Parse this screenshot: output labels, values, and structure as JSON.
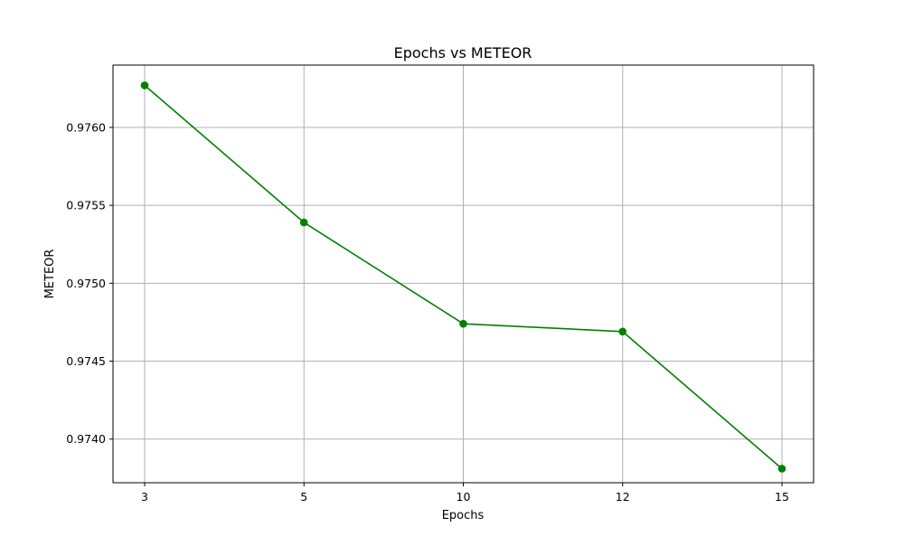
{
  "chart_data": {
    "type": "line",
    "title": "Epochs vs METEOR",
    "xlabel": "Epochs",
    "ylabel": "METEOR",
    "categories": [
      "3",
      "5",
      "10",
      "12",
      "15"
    ],
    "series": [
      {
        "values": [
          0.97627,
          0.97539,
          0.97474,
          0.97469,
          0.97381
        ],
        "color": "#008000",
        "marker": "circle"
      }
    ],
    "yticks": [
      0.974,
      0.9745,
      0.975,
      0.9755,
      0.976
    ],
    "ytick_labels": [
      "0.9740",
      "0.9745",
      "0.9750",
      "0.9755",
      "0.9760"
    ],
    "ylim": [
      0.97372,
      0.9764
    ],
    "grid": true,
    "legend": "none"
  }
}
